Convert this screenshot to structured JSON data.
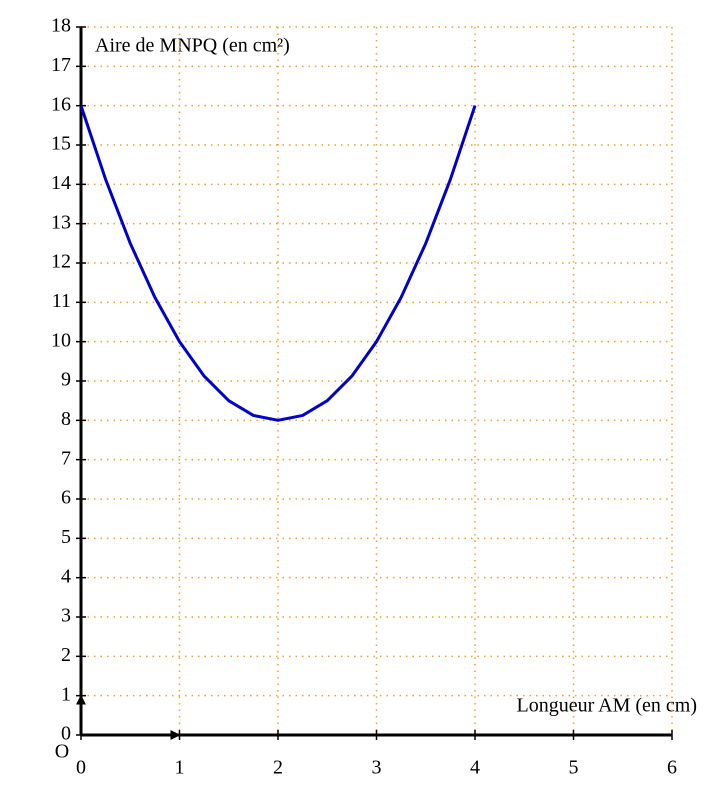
{
  "chart_data": {
    "type": "line",
    "y_label": "Aire de MNPQ (en cm²)",
    "x_label": "Longueur AM (en cm)",
    "origin_label": "O",
    "x": [
      0,
      0.25,
      0.5,
      0.75,
      1,
      1.25,
      1.5,
      1.75,
      2,
      2.25,
      2.5,
      2.75,
      3,
      3.25,
      3.5,
      3.75,
      4
    ],
    "series": [
      {
        "color": "#0000cc",
        "values": [
          16,
          14.125,
          12.5,
          11.125,
          10,
          9.125,
          8.5,
          8.125,
          8,
          8.125,
          8.5,
          9.125,
          10,
          11.125,
          12.5,
          14.125,
          16
        ]
      }
    ],
    "xlim": [
      0,
      6
    ],
    "ylim": [
      0,
      18
    ],
    "xticks": [
      0,
      1,
      2,
      3,
      4,
      5,
      6
    ],
    "yticks": [
      0,
      1,
      2,
      3,
      4,
      5,
      6,
      7,
      8,
      9,
      10,
      11,
      12,
      13,
      14,
      15,
      16,
      17,
      18
    ],
    "grid": true,
    "grid_color": "#f0a030"
  }
}
